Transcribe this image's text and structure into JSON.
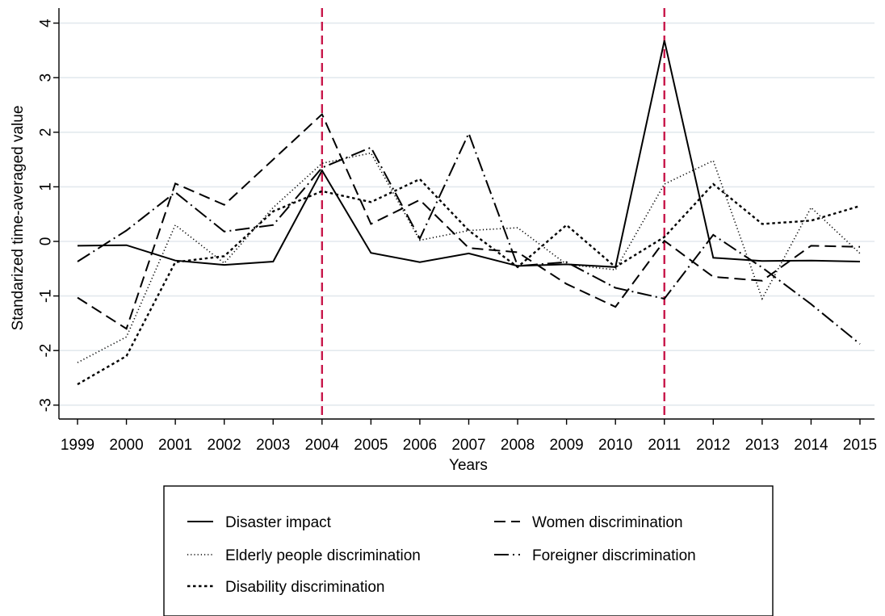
{
  "chart_data": {
    "type": "line",
    "xlabel": "Years",
    "ylabel": "Standarized time-averaged value",
    "x": [
      1999,
      2000,
      2001,
      2002,
      2003,
      2004,
      2005,
      2006,
      2007,
      2008,
      2009,
      2010,
      2011,
      2012,
      2013,
      2014,
      2015
    ],
    "xticks": [
      "1999",
      "2000",
      "2001",
      "2002",
      "2003",
      "2004",
      "2005",
      "2006",
      "2007",
      "2008",
      "2009",
      "2010",
      "2011",
      "2012",
      "2013",
      "2014",
      "2015"
    ],
    "yticks": [
      "-3",
      "-2",
      "-1",
      "0",
      "1",
      "2",
      "3",
      "4"
    ],
    "ylim": [
      -3.25,
      4.25
    ],
    "grid": true,
    "vlines": [
      2004,
      2011
    ],
    "vline_color": "#c8174a",
    "series": [
      {
        "name": "Disaster impact",
        "style": "solid",
        "values": [
          -0.08,
          -0.07,
          -0.35,
          -0.43,
          -0.37,
          1.3,
          -0.21,
          -0.38,
          -0.22,
          -0.45,
          -0.42,
          -0.47,
          3.68,
          -0.3,
          -0.36,
          -0.35,
          -0.37
        ]
      },
      {
        "name": "Women discrimination",
        "style": "dashed",
        "values": [
          -1.03,
          -1.6,
          1.06,
          0.67,
          1.5,
          2.33,
          0.32,
          0.76,
          -0.12,
          -0.2,
          -0.78,
          -1.2,
          0.01,
          -0.65,
          -0.72,
          -0.08,
          -0.1
        ]
      },
      {
        "name": "Elderly people discrimination",
        "style": "dotted-fine",
        "values": [
          -2.22,
          -1.75,
          0.3,
          -0.4,
          0.62,
          1.43,
          1.62,
          0.02,
          0.2,
          0.25,
          -0.42,
          -0.52,
          1.05,
          1.48,
          -1.05,
          0.62,
          -0.22
        ]
      },
      {
        "name": "Foreigner discrimination",
        "style": "dash-dot",
        "values": [
          -0.37,
          0.2,
          0.9,
          0.18,
          0.3,
          1.35,
          1.72,
          0.05,
          1.98,
          -0.45,
          -0.38,
          -0.85,
          -1.05,
          0.12,
          -0.48,
          -1.15,
          -1.88
        ]
      },
      {
        "name": "Disability discrimination",
        "style": "short-dash",
        "values": [
          -2.62,
          -2.1,
          -0.38,
          -0.27,
          0.55,
          0.92,
          0.72,
          1.14,
          0.2,
          -0.47,
          0.3,
          -0.47,
          0.08,
          1.05,
          0.32,
          0.38,
          0.65
        ]
      }
    ]
  }
}
